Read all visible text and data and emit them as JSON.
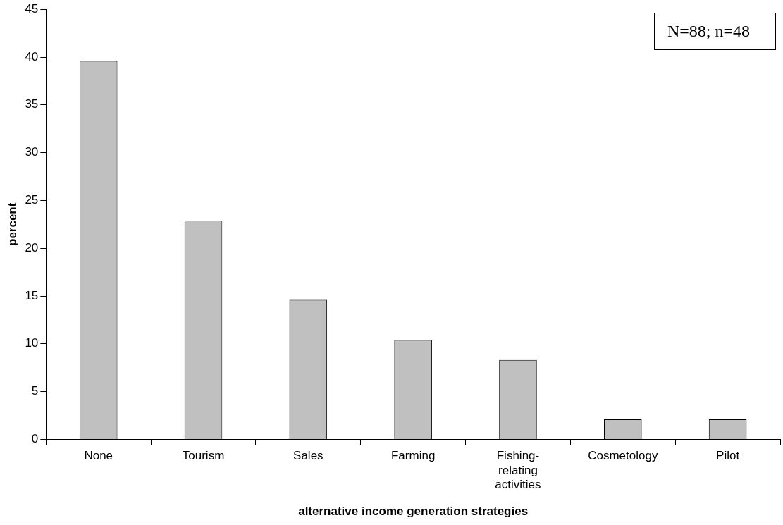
{
  "chart_data": {
    "type": "bar",
    "categories": [
      "None",
      "Tourism",
      "Sales",
      "Farming",
      "Fishing-relating activities",
      "Cosmetology",
      "Pilot"
    ],
    "values": [
      39.6,
      22.9,
      14.6,
      10.4,
      8.3,
      2.1,
      2.1
    ],
    "color": "#c0c0c0",
    "xlabel": "alternative income generation strategies",
    "ylabel": "percent",
    "ylim": [
      0,
      45
    ],
    "yticks": [
      0,
      5,
      10,
      15,
      20,
      25,
      30,
      35,
      40,
      45
    ],
    "grid": false,
    "legend": false,
    "annotations": [
      "N=88; n=48"
    ]
  }
}
